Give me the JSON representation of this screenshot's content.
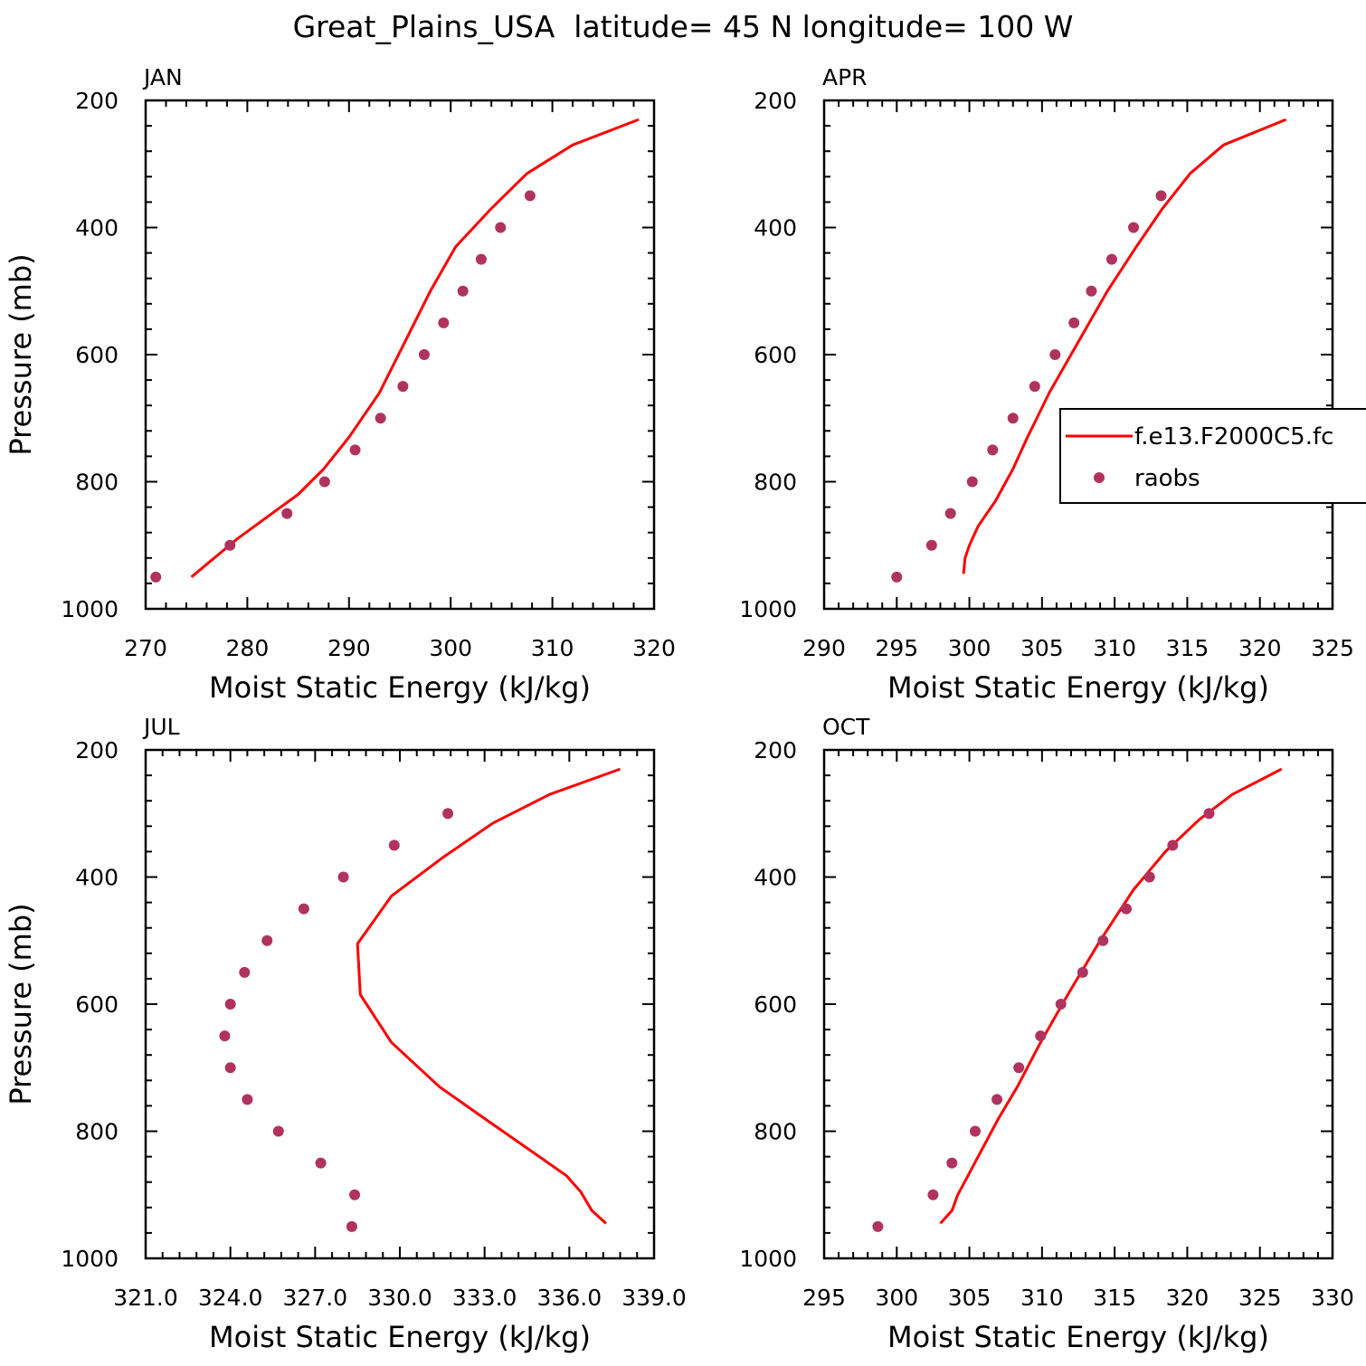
{
  "title": "Great_Plains_USA  latitude= 45 N longitude= 100 W",
  "colors": {
    "model_line": "#ff0000",
    "obs_marker": "#b0335f",
    "axes": "#000000"
  },
  "legend": {
    "panel": 1,
    "entries": [
      {
        "label": "f.e13.F2000C5.fc",
        "style": "line"
      },
      {
        "label": "raobs",
        "style": "marker"
      }
    ]
  },
  "chart_data": [
    {
      "type": "line",
      "panel_label": "JAN",
      "xlabel": "Moist Static Energy (kJ/kg)",
      "ylabel": "Pressure (mb)",
      "xlim": [
        270,
        320
      ],
      "ylim": [
        1000,
        200
      ],
      "x_ticks": [
        "270",
        "280",
        "290",
        "300",
        "310",
        "320"
      ],
      "y_ticks": [
        "200",
        "400",
        "600",
        "800",
        "1000"
      ],
      "series": [
        {
          "name": "f.e13.F2000C5.fc",
          "style": "line",
          "x": [
            318.5,
            312,
            307.5,
            304,
            300.5,
            298,
            295.5,
            293,
            290,
            287.5,
            285,
            282,
            279,
            276,
            274.5
          ],
          "y": [
            230,
            270,
            315,
            370,
            430,
            500,
            580,
            660,
            730,
            780,
            820,
            855,
            890,
            930,
            950
          ]
        },
        {
          "name": "raobs",
          "style": "marker",
          "x": [
            307.8,
            304.9,
            303,
            301.2,
            299.3,
            297.4,
            295.3,
            293.1,
            290.6,
            287.6,
            283.9,
            278.3,
            271
          ],
          "y": [
            350,
            400,
            450,
            500,
            550,
            600,
            650,
            700,
            750,
            800,
            850,
            900,
            950
          ]
        }
      ]
    },
    {
      "type": "line",
      "panel_label": "APR",
      "xlabel": "Moist Static Energy (kJ/kg)",
      "ylabel": "",
      "xlim": [
        290,
        325
      ],
      "ylim": [
        1000,
        200
      ],
      "x_ticks": [
        "290",
        "295",
        "300",
        "305",
        "310",
        "315",
        "320",
        "325"
      ],
      "y_ticks": [
        "200",
        "400",
        "600",
        "800",
        "1000"
      ],
      "series": [
        {
          "name": "f.e13.F2000C5.fc",
          "style": "line",
          "x": [
            321.8,
            317.5,
            315.2,
            313.3,
            311.5,
            309.5,
            307.5,
            305.5,
            304,
            303,
            301.8,
            300.6,
            300,
            299.7,
            299.6
          ],
          "y": [
            230,
            270,
            315,
            370,
            430,
            500,
            580,
            660,
            730,
            780,
            830,
            870,
            900,
            920,
            945
          ]
        },
        {
          "name": "raobs",
          "style": "marker",
          "x": [
            313.2,
            311.3,
            309.8,
            308.4,
            307.2,
            305.9,
            304.5,
            303,
            301.6,
            300.2,
            298.7,
            297.4,
            295
          ],
          "y": [
            350,
            400,
            450,
            500,
            550,
            600,
            650,
            700,
            750,
            800,
            850,
            900,
            950
          ]
        }
      ]
    },
    {
      "type": "line",
      "panel_label": "JUL",
      "xlabel": "Moist Static Energy (kJ/kg)",
      "ylabel": "Pressure (mb)",
      "xlim": [
        321,
        339
      ],
      "ylim": [
        1000,
        200
      ],
      "x_ticks": [
        "321.0",
        "324.0",
        "327.0",
        "330.0",
        "333.0",
        "336.0",
        "339.0"
      ],
      "y_ticks": [
        "200",
        "400",
        "600",
        "800",
        "1000"
      ],
      "series": [
        {
          "name": "f.e13.F2000C5.fc",
          "style": "line",
          "x": [
            337.8,
            335.3,
            333.3,
            331.5,
            329.7,
            328.5,
            328.6,
            329.7,
            331.4,
            333,
            335.1,
            335.9,
            336.4,
            336.8,
            337.3
          ],
          "y": [
            230,
            270,
            315,
            370,
            430,
            505,
            585,
            660,
            730,
            780,
            845,
            870,
            895,
            925,
            945
          ]
        },
        {
          "name": "raobs",
          "style": "marker",
          "x": [
            331.7,
            329.8,
            328,
            326.6,
            325.3,
            324.5,
            324,
            323.8,
            324,
            324.6,
            325.7,
            327.2,
            328.4,
            328.3
          ],
          "y": [
            300,
            350,
            400,
            450,
            500,
            550,
            600,
            650,
            700,
            750,
            800,
            850,
            900,
            950
          ]
        }
      ]
    },
    {
      "type": "line",
      "panel_label": "OCT",
      "xlabel": "Moist Static Energy (kJ/kg)",
      "ylabel": "",
      "xlim": [
        295,
        330
      ],
      "ylim": [
        1000,
        200
      ],
      "x_ticks": [
        "295",
        "300",
        "305",
        "310",
        "315",
        "320",
        "325",
        "330"
      ],
      "y_ticks": [
        "200",
        "400",
        "600",
        "800",
        "1000"
      ],
      "series": [
        {
          "name": "f.e13.F2000C5.fc",
          "style": "line",
          "x": [
            326.5,
            323.1,
            320.8,
            318.5,
            316.3,
            314,
            311.9,
            309.9,
            308.3,
            307,
            305.6,
            304.9,
            304.2,
            303.8,
            303
          ],
          "y": [
            230,
            270,
            310,
            360,
            420,
            500,
            580,
            660,
            730,
            780,
            840,
            870,
            900,
            925,
            945
          ]
        },
        {
          "name": "raobs",
          "style": "marker",
          "x": [
            321.5,
            319,
            317.4,
            315.8,
            314.2,
            312.8,
            311.3,
            309.9,
            308.4,
            306.9,
            305.4,
            303.8,
            302.5,
            298.7
          ],
          "y": [
            300,
            350,
            400,
            450,
            500,
            550,
            600,
            650,
            700,
            750,
            800,
            850,
            900,
            950
          ]
        }
      ]
    }
  ]
}
